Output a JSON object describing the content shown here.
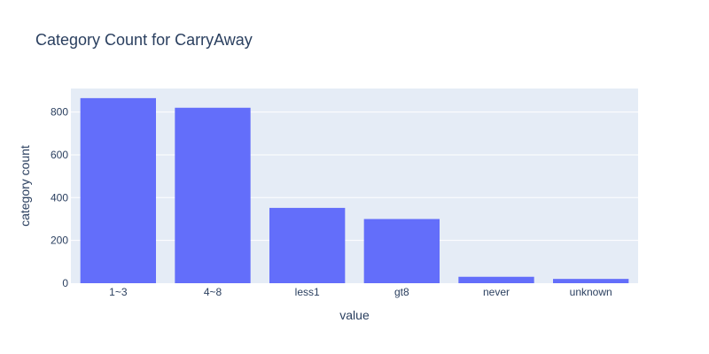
{
  "chart_data": {
    "type": "bar",
    "title": "Category Count for CarryAway",
    "xlabel": "value",
    "ylabel": "category count",
    "categories": [
      "1~3",
      "4~8",
      "less1",
      "gt8",
      "never",
      "unknown"
    ],
    "values": [
      865,
      820,
      352,
      300,
      30,
      20
    ],
    "ylim": [
      0,
      910
    ],
    "yticks": [
      0,
      200,
      400,
      600,
      800
    ],
    "grid": true,
    "legend": "none",
    "colors": {
      "bar": "#636efa",
      "plot_bg": "#e5ecf6",
      "grid": "#ffffff",
      "text": "#2a3f5f"
    }
  }
}
